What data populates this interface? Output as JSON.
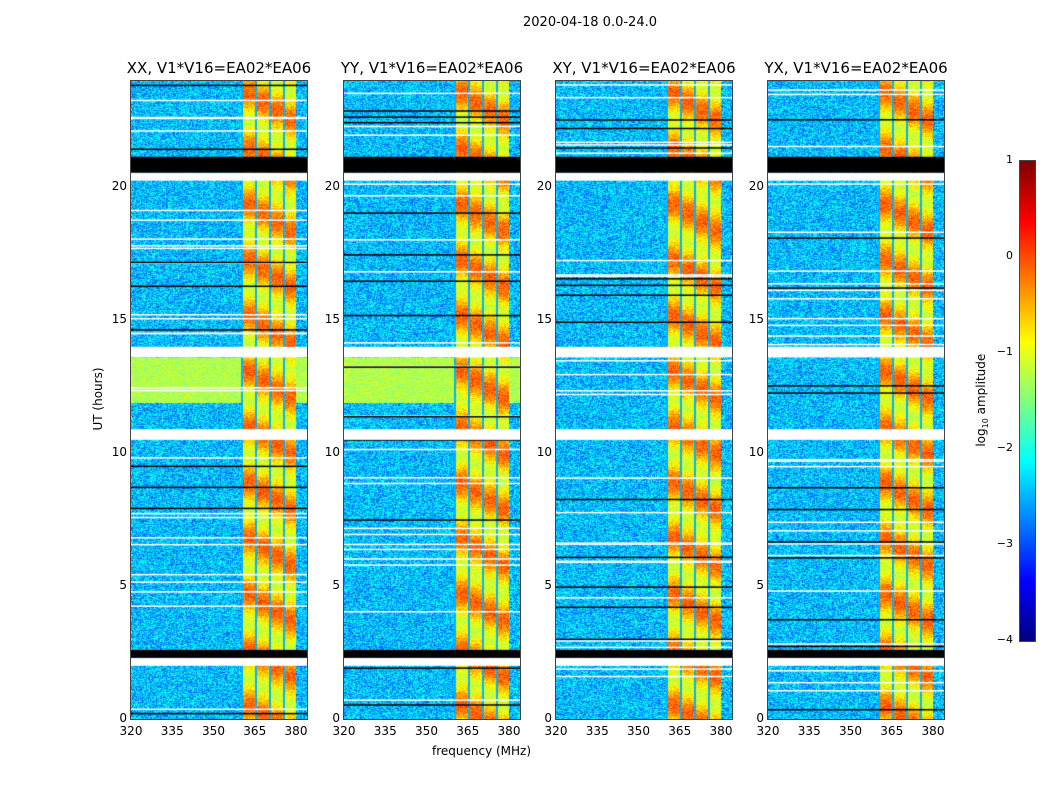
{
  "suptitle": "2020-04-18 0.0-24.0",
  "chart_data": {
    "type": "heatmap",
    "title": "2020-04-18 0.0-24.0",
    "xlabel": "frequency (MHz)",
    "ylabel": "UT (hours)",
    "xlim": [
      320,
      384
    ],
    "ylim": [
      0,
      24
    ],
    "xticks": [
      "320",
      "335",
      "350",
      "365",
      "380"
    ],
    "yticks": [
      "0",
      "5",
      "10",
      "15",
      "20"
    ],
    "panels": [
      {
        "title": "XX, V1*V16=EA02*EA06",
        "green_band": true
      },
      {
        "title": "YY, V1*V16=EA02*EA06",
        "green_band": true
      },
      {
        "title": "XY, V1*V16=EA02*EA06",
        "green_band": false
      },
      {
        "title": "YX, V1*V16=EA02*EA06",
        "green_band": false
      }
    ],
    "bright_band_mhz": [
      360,
      380
    ],
    "flagged_black_ut": [
      [
        20.55,
        21.15
      ],
      [
        2.3,
        2.6
      ]
    ],
    "flagged_white_ut": [
      [
        20.25,
        20.55
      ],
      [
        13.6,
        14.0
      ],
      [
        10.5,
        10.9
      ],
      [
        2.0,
        2.3
      ]
    ],
    "colorbar": {
      "label": "log10 amplitude",
      "label_main": "log",
      "label_sub": "10",
      "label_rest": " amplitude",
      "range": [
        -4,
        1
      ],
      "ticks": [
        "1",
        "0",
        "−1",
        "−2",
        "−3",
        "−4"
      ]
    }
  }
}
